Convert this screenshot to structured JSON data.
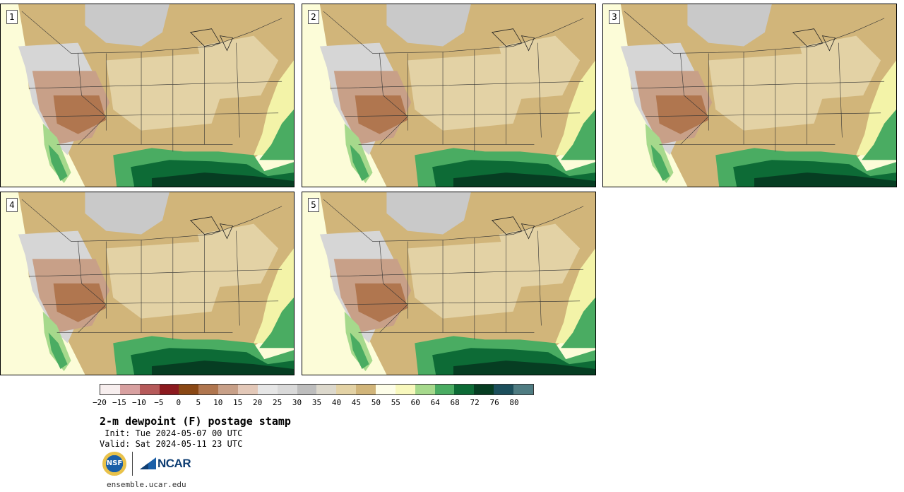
{
  "panels": [
    {
      "number": "1"
    },
    {
      "number": "2"
    },
    {
      "number": "3"
    },
    {
      "number": "4"
    },
    {
      "number": "5"
    }
  ],
  "colorbar": {
    "colors": [
      "#f7eeee",
      "#d8a0a0",
      "#b65a5a",
      "#8c1a1f",
      "#8a4815",
      "#b0764f",
      "#c8a088",
      "#e3c8b8",
      "#e6e6e6",
      "#d9d9d9",
      "#bdbdbd",
      "#dcd8cc",
      "#e3d2a5",
      "#d1b57a",
      "#fdfde8",
      "#f8f8bd",
      "#a6d98c",
      "#4aac62",
      "#0d6b36",
      "#063d22",
      "#1c4f5c",
      "#4f7c82"
    ],
    "ticks": [
      "−20",
      "−15",
      "−10",
      "−5",
      "0",
      "5",
      "10",
      "15",
      "20",
      "25",
      "30",
      "35",
      "40",
      "45",
      "50",
      "55",
      "60",
      "64",
      "68",
      "72",
      "76",
      "80"
    ]
  },
  "title": "2-m dewpoint (F) postage stamp",
  "init_line": " Init: Tue 2024-05-07 00 UTC",
  "valid_line": "Valid: Sat 2024-05-11 23 UTC",
  "logos": {
    "nsf": "NSF",
    "ncar": "NCAR"
  },
  "website": "ensemble.ucar.edu",
  "map_colors": {
    "ocean_far": "#fcfcd8",
    "ocean_mid": "#f3f3a8",
    "coast_green": "#a6d98c",
    "gulf_dark": "#0d6b36",
    "gulf_deepest": "#063d22",
    "gulf_edge": "#4aac62",
    "land_tan": "#d1b57a",
    "land_light": "#e3d2a5",
    "land_grey": "#d6d6d6",
    "mountain_grey": "#c9c9c9",
    "dry_brown": "#b0764f",
    "dry_tan": "#c8a088",
    "border": "#333333"
  }
}
